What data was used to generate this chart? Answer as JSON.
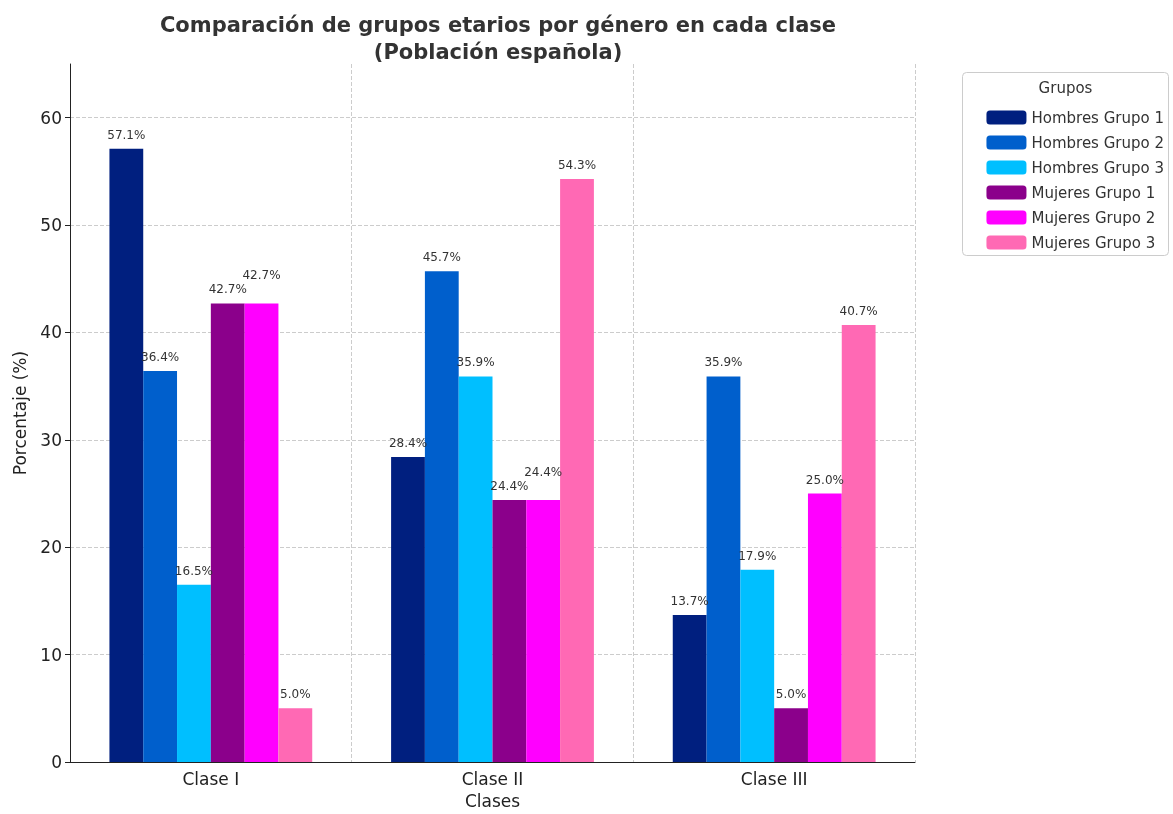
{
  "chart_data": {
    "type": "bar",
    "title": "Comparación de grupos etarios por género en cada clase\n(Población española)",
    "xlabel": "Clases",
    "ylabel": "Porcentaje (%)",
    "legend_title": "Grupos",
    "categories": [
      "Clase I",
      "Clase II",
      "Clase III"
    ],
    "series": [
      {
        "name": "Hombres Grupo 1",
        "color": "#001f7f",
        "values": [
          57.1,
          28.4,
          13.7
        ],
        "value_labels": [
          "57.1%",
          "28.4%",
          "13.7%"
        ]
      },
      {
        "name": "Hombres Grupo 2",
        "color": "#005fcc",
        "values": [
          36.4,
          45.7,
          35.9
        ],
        "value_labels": [
          "36.4%",
          "45.7%",
          "35.9%"
        ]
      },
      {
        "name": "Hombres Grupo 3",
        "color": "#00bfff",
        "values": [
          16.5,
          35.9,
          17.9
        ],
        "value_labels": [
          "16.5%",
          "35.9%",
          "17.9%"
        ]
      },
      {
        "name": "Mujeres Grupo 1",
        "color": "#8b008b",
        "values": [
          42.7,
          24.4,
          5.0
        ],
        "value_labels": [
          "42.7%",
          "24.4%",
          "5.0%"
        ]
      },
      {
        "name": "Mujeres Grupo 2",
        "color": "#ff00ff",
        "values": [
          42.7,
          24.4,
          25.0
        ],
        "value_labels": [
          "42.7%",
          "24.4%",
          "25.0%"
        ]
      },
      {
        "name": "Mujeres Grupo 3",
        "color": "#ff69b4",
        "values": [
          5.0,
          54.3,
          40.7
        ],
        "value_labels": [
          "5.0%",
          "54.3%",
          "40.7%"
        ]
      }
    ],
    "ylim": [
      0,
      65
    ],
    "yticks": [
      0,
      10,
      20,
      30,
      40,
      50,
      60
    ],
    "grid": true,
    "legend": "top right"
  }
}
